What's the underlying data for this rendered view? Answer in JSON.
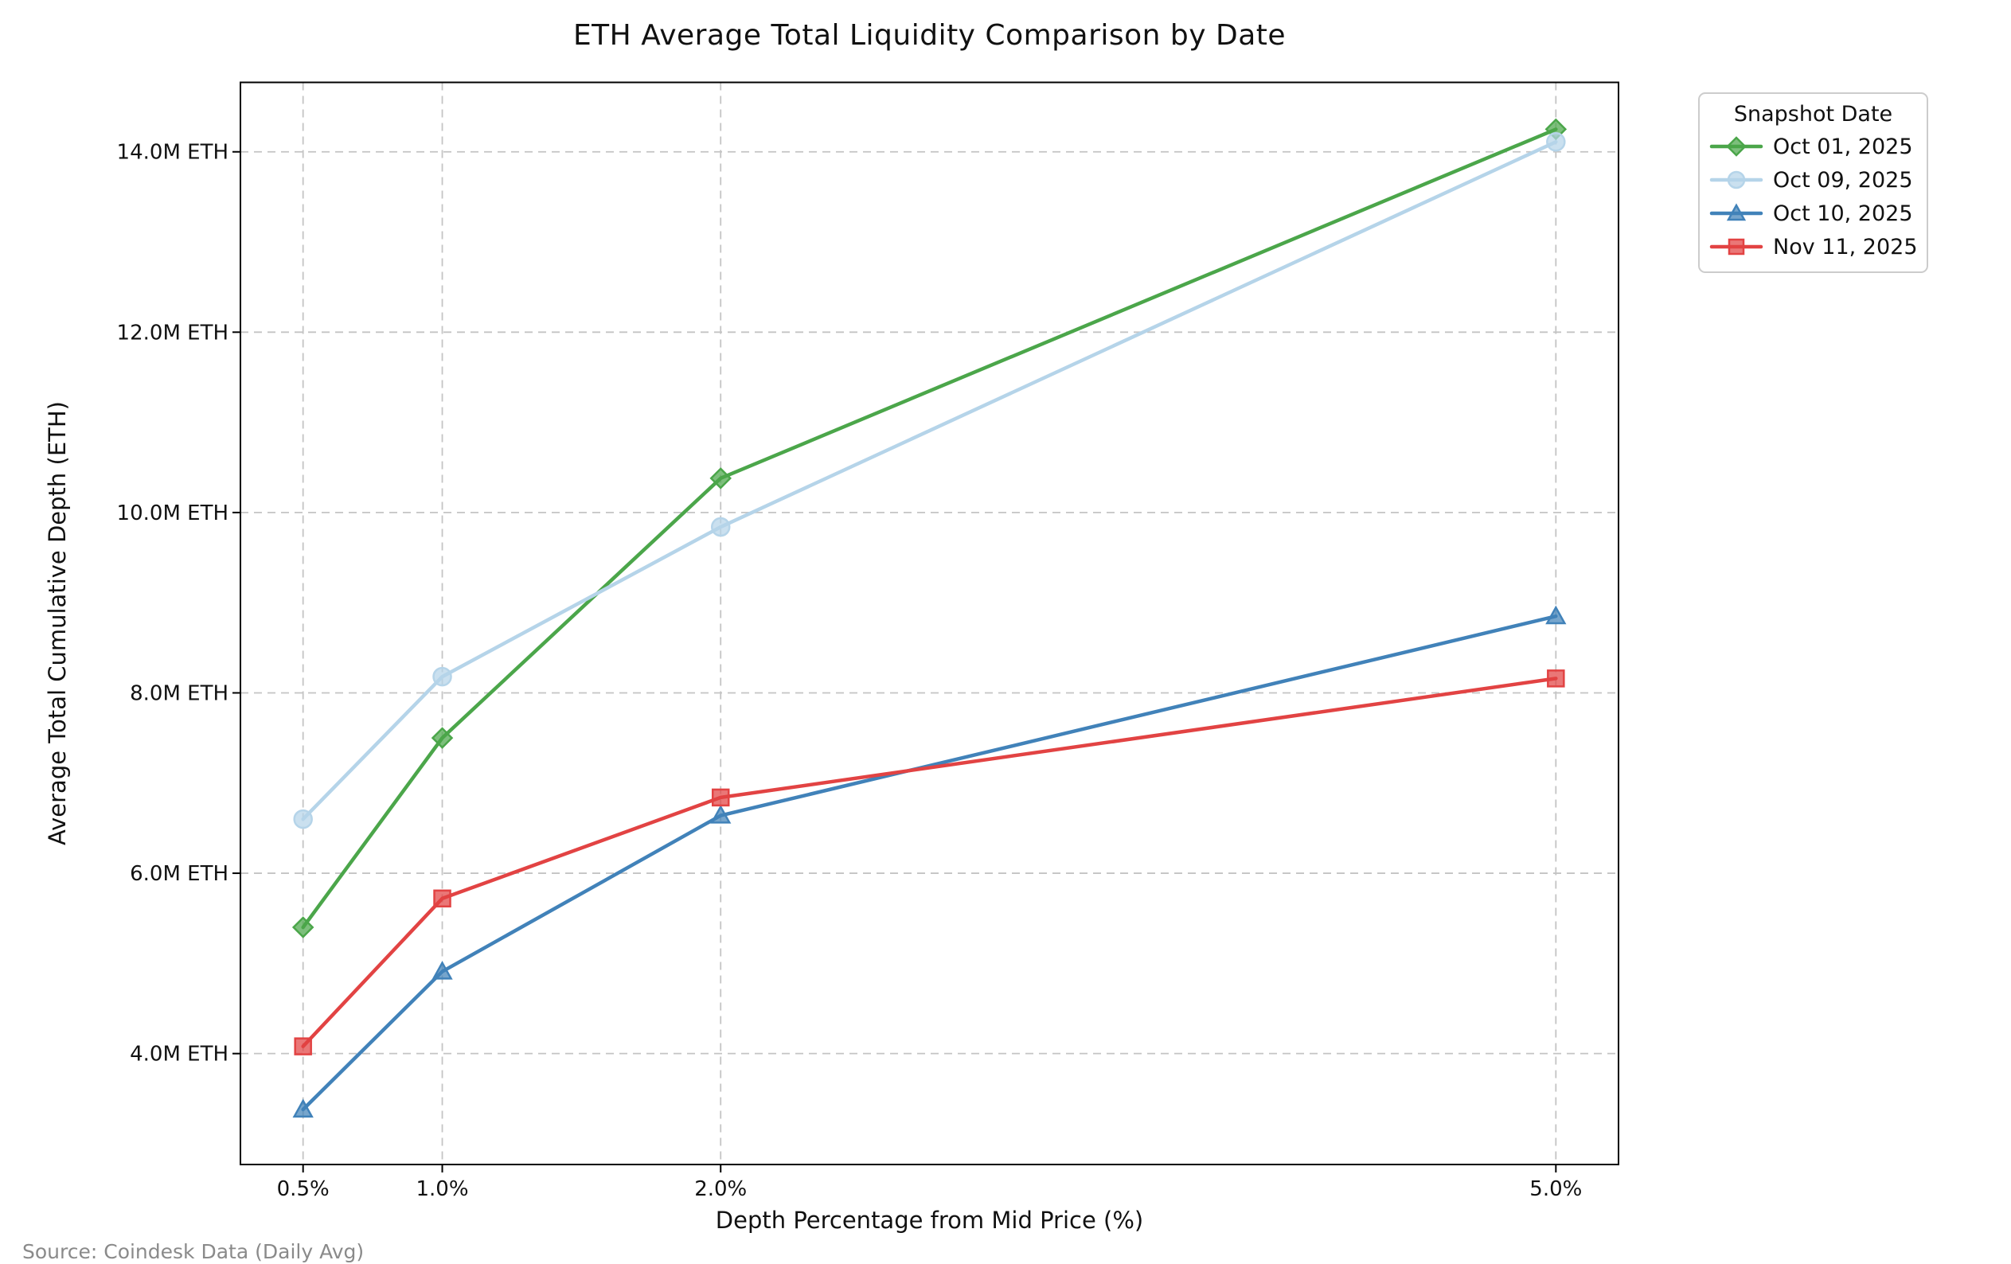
{
  "chart_data": {
    "type": "line",
    "title": "ETH Average Total Liquidity Comparison by Date",
    "xlabel": "Depth Percentage from Mid Price (%)",
    "ylabel": "Average Total Cumulative Depth (ETH)",
    "source": "Source: Coindesk Data (Daily Avg)",
    "legend_title": "Snapshot Date",
    "legend_position": "upper right, outside plot area",
    "grid": true,
    "grid_style": "dashed",
    "x": [
      0.5,
      1.0,
      2.0,
      5.0
    ],
    "x_tick_labels": [
      "0.5%",
      "1.0%",
      "2.0%",
      "5.0%"
    ],
    "xlim": [
      0.275,
      5.225
    ],
    "y_ticks": [
      4,
      6,
      8,
      10,
      12,
      14
    ],
    "y_tick_labels": [
      "4.0M ETH",
      "6.0M ETH",
      "8.0M ETH",
      "10.0M ETH",
      "12.0M ETH",
      "14.0M ETH"
    ],
    "ylim": [
      2.77,
      14.77
    ],
    "y_unit": "M ETH",
    "series": [
      {
        "name": "Oct 01, 2025",
        "color": "#4ba64a",
        "marker": "diamond",
        "values": [
          5.4,
          7.5,
          10.38,
          14.25
        ]
      },
      {
        "name": "Oct 09, 2025",
        "color": "#b5d4e9",
        "marker": "circle",
        "values": [
          6.6,
          8.18,
          9.84,
          14.11
        ]
      },
      {
        "name": "Oct 10, 2025",
        "color": "#4182b9",
        "marker": "triangle",
        "values": [
          3.38,
          4.91,
          6.64,
          8.85
        ]
      },
      {
        "name": "Nov 11, 2025",
        "color": "#e24343",
        "marker": "square",
        "values": [
          4.08,
          5.72,
          6.84,
          8.16
        ]
      }
    ]
  }
}
